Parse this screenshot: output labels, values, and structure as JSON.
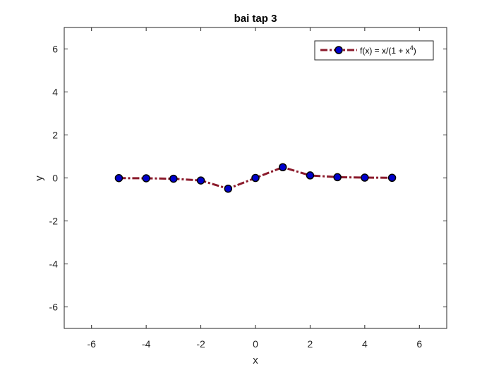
{
  "chart_data": {
    "type": "line",
    "title": "bai tap 3",
    "xlabel": "x",
    "ylabel": "y",
    "xlim": [
      -7,
      7
    ],
    "ylim": [
      -7,
      7
    ],
    "xticks": [
      -6,
      -4,
      -2,
      0,
      2,
      4,
      6
    ],
    "yticks": [
      -6,
      -4,
      -2,
      0,
      2,
      4,
      6
    ],
    "grid": false,
    "legend_position": "top-right",
    "series": [
      {
        "name": "f(x) = x/(1 + x^4)",
        "name_parts": {
          "base": "f(x) = x/(1 + x",
          "sup": "4",
          "tail": ")"
        },
        "color": "#8b1a2b",
        "marker_color": "#0000cc",
        "marker_edge": "#000000",
        "line_style": "dash-dot",
        "x": [
          -5,
          -4,
          -3,
          -2,
          -1,
          0,
          1,
          2,
          3,
          4,
          5
        ],
        "y": [
          -0.008,
          -0.0156,
          -0.0366,
          -0.1176,
          -0.5,
          0,
          0.5,
          0.1176,
          0.0366,
          0.0156,
          0.008
        ]
      }
    ]
  }
}
